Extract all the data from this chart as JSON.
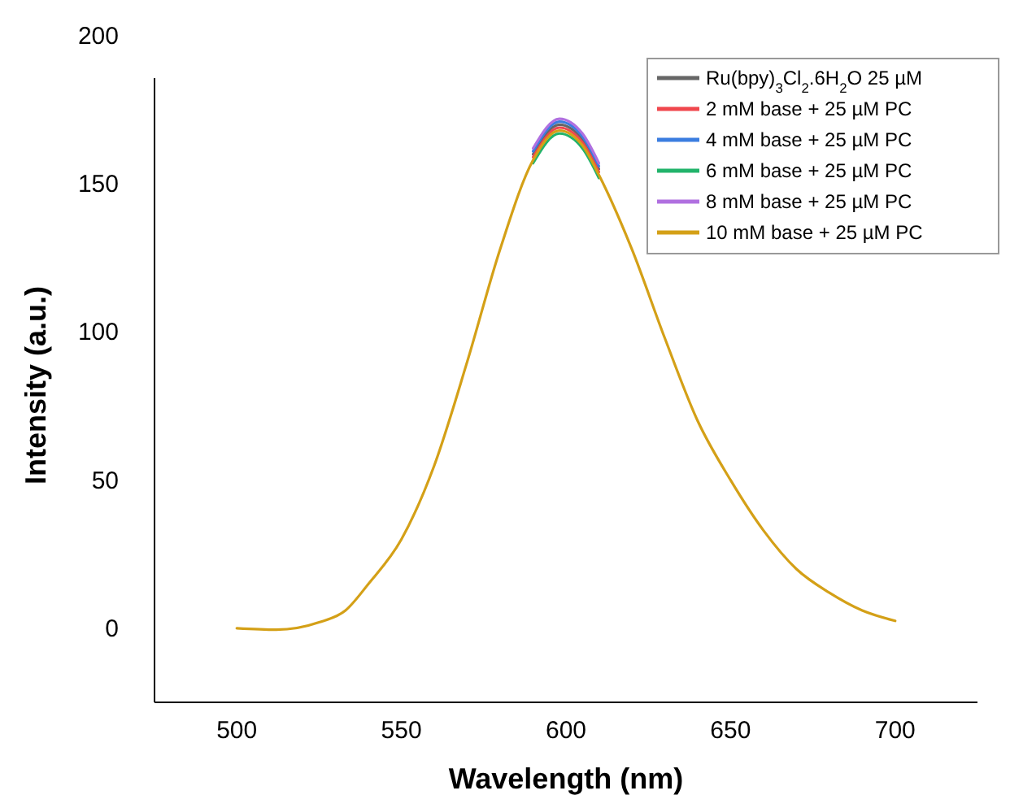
{
  "chart_data": {
    "type": "line",
    "xlabel": "Wavelength (nm)",
    "ylabel": "Intensity (a.u.)",
    "xlim": [
      475,
      725
    ],
    "ylim": [
      -25,
      200
    ],
    "xticks": [
      500,
      550,
      600,
      650,
      700
    ],
    "yticks": [
      0,
      50,
      100,
      150,
      200
    ],
    "grid": false,
    "legend": "top right",
    "line_style": "solid",
    "marker": "none",
    "x": [
      500,
      512,
      525,
      533,
      540,
      550,
      560,
      570,
      580,
      590,
      598,
      605,
      610,
      620,
      630,
      640,
      650,
      660,
      670,
      680,
      690,
      700
    ],
    "series": [
      {
        "name": "Ru(bpy)$_{3}$Cl$_{2}$.6H$_{2}$O 25 µM",
        "color": "#666666",
        "values": [
          null,
          null,
          null,
          null,
          null,
          null,
          null,
          null,
          null,
          160,
          170,
          165,
          155,
          null,
          null,
          null,
          null,
          null,
          null,
          null,
          null,
          null
        ]
      },
      {
        "name": "2 mM base + 25 µM PC",
        "color": "#f0474d",
        "values": [
          null,
          null,
          null,
          null,
          null,
          null,
          null,
          null,
          null,
          159,
          169,
          164,
          154,
          null,
          null,
          null,
          null,
          null,
          null,
          null,
          null,
          null
        ]
      },
      {
        "name": "4 mM base + 25 µM PC",
        "color": "#3b7de0",
        "values": [
          null,
          null,
          null,
          null,
          null,
          null,
          null,
          null,
          null,
          161,
          171,
          166,
          156,
          null,
          null,
          null,
          null,
          null,
          null,
          null,
          null,
          null
        ]
      },
      {
        "name": "6 mM base + 25 µM PC",
        "color": "#22b36b",
        "values": [
          null,
          null,
          null,
          null,
          null,
          null,
          null,
          null,
          null,
          157,
          167,
          162,
          152,
          null,
          null,
          null,
          null,
          null,
          null,
          null,
          null,
          null
        ]
      },
      {
        "name": "8 mM base + 25 µM PC",
        "color": "#b070e0",
        "values": [
          null,
          null,
          null,
          null,
          null,
          null,
          null,
          null,
          null,
          162,
          172,
          167,
          157,
          null,
          null,
          null,
          null,
          null,
          null,
          null,
          null,
          null
        ]
      },
      {
        "name": "10 mM base + 25 µM PC",
        "color": "#d4a017",
        "values": [
          0,
          -0.5,
          2,
          6,
          15,
          30,
          55,
          90,
          128,
          158,
          168,
          163,
          153,
          128,
          98,
          70,
          50,
          33,
          20,
          12,
          6,
          2.5
        ]
      }
    ]
  }
}
